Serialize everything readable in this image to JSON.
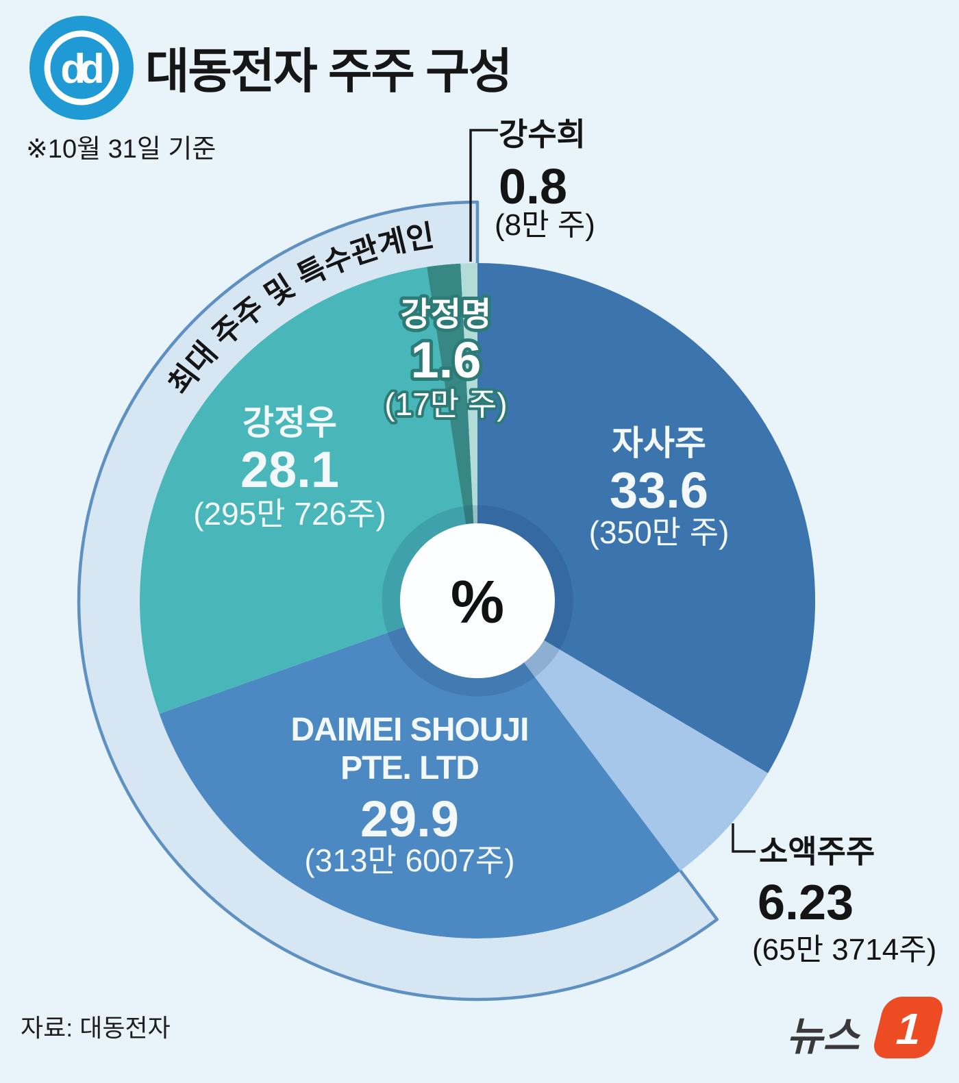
{
  "header": {
    "logo": {
      "text": "dd",
      "bg_color": "#1f9ad4"
    },
    "title": "대동전자 주주 구성",
    "note": "※10월 31일 기준"
  },
  "chart_data": {
    "type": "pie",
    "title": "대동전자 주주 구성",
    "as_of_note": "※10월 31일 기준",
    "center_label": "%",
    "legend_position": "on-slice",
    "group_band": {
      "label": "최대 주주 및 특수관계인",
      "start_slice_index": 2,
      "fill": "#d6e6f3",
      "stroke": "#5e90c1"
    },
    "slices": [
      {
        "id": "jasaju",
        "name": "자사주",
        "value": 33.6,
        "shares": "(350만 주)",
        "color": "#3c74ae"
      },
      {
        "id": "soaekjuju",
        "name": "소액주주",
        "value": 6.23,
        "shares": "(65만 3714주)",
        "color": "#a6c7e9"
      },
      {
        "id": "daimei-shouji",
        "name": "DAIMEI SHOUJI PTE. LTD",
        "name_lines": [
          "DAIMEI SHOUJI",
          "PTE. LTD"
        ],
        "value": 29.9,
        "shares": "(313만 6007주)",
        "color": "#4c88c1"
      },
      {
        "id": "kang-jung-woo",
        "name": "강정우",
        "value": 28.1,
        "shares": "(295만 726주)",
        "color": "#49b7b9"
      },
      {
        "id": "kang-jung-myung",
        "name": "강정명",
        "value": 1.6,
        "shares": "(17만 주)",
        "color": "#378884"
      },
      {
        "id": "kang-soo-hee",
        "name": "강수희",
        "value": 0.8,
        "shares": "(8만 주)",
        "color": "#b3dbd8"
      }
    ]
  },
  "footer": {
    "source": "자료: 대동전자",
    "credit": {
      "wordmark": "뉴스",
      "badge": "1",
      "badge_color": "#ec4b24"
    }
  }
}
